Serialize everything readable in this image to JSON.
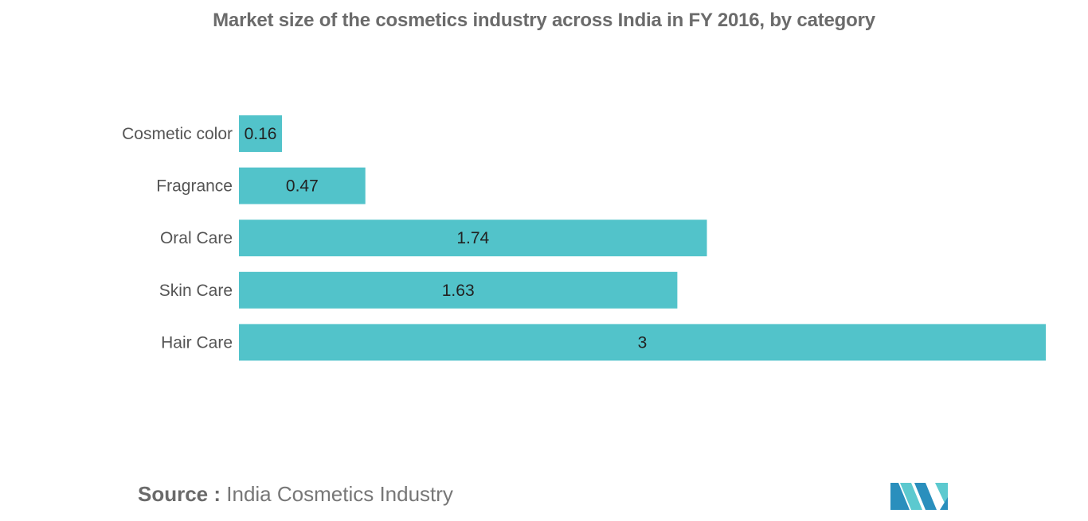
{
  "title": "Market size of the cosmetics industry across India in FY 2016, by category",
  "source": {
    "prefix": "Source :",
    "text": "India Cosmetics Industry"
  },
  "colors": {
    "bar": "#52c3ca",
    "logo_dark": "#2a8fbd",
    "logo_light": "#5cc9cf"
  },
  "chart_data": {
    "type": "bar",
    "orientation": "horizontal",
    "title": "Market size of the cosmetics industry across India in FY 2016, by category",
    "categories": [
      "Cosmetic color",
      "Fragrance",
      "Oral Care",
      "Skin Care",
      "Hair Care"
    ],
    "values": [
      0.16,
      0.47,
      1.74,
      1.63,
      3
    ],
    "value_labels": [
      "0.16",
      "0.47",
      "1.74",
      "1.63",
      "3"
    ],
    "xlim": [
      0,
      3
    ],
    "xlabel": "",
    "ylabel": "",
    "grid": false,
    "legend": "none"
  }
}
